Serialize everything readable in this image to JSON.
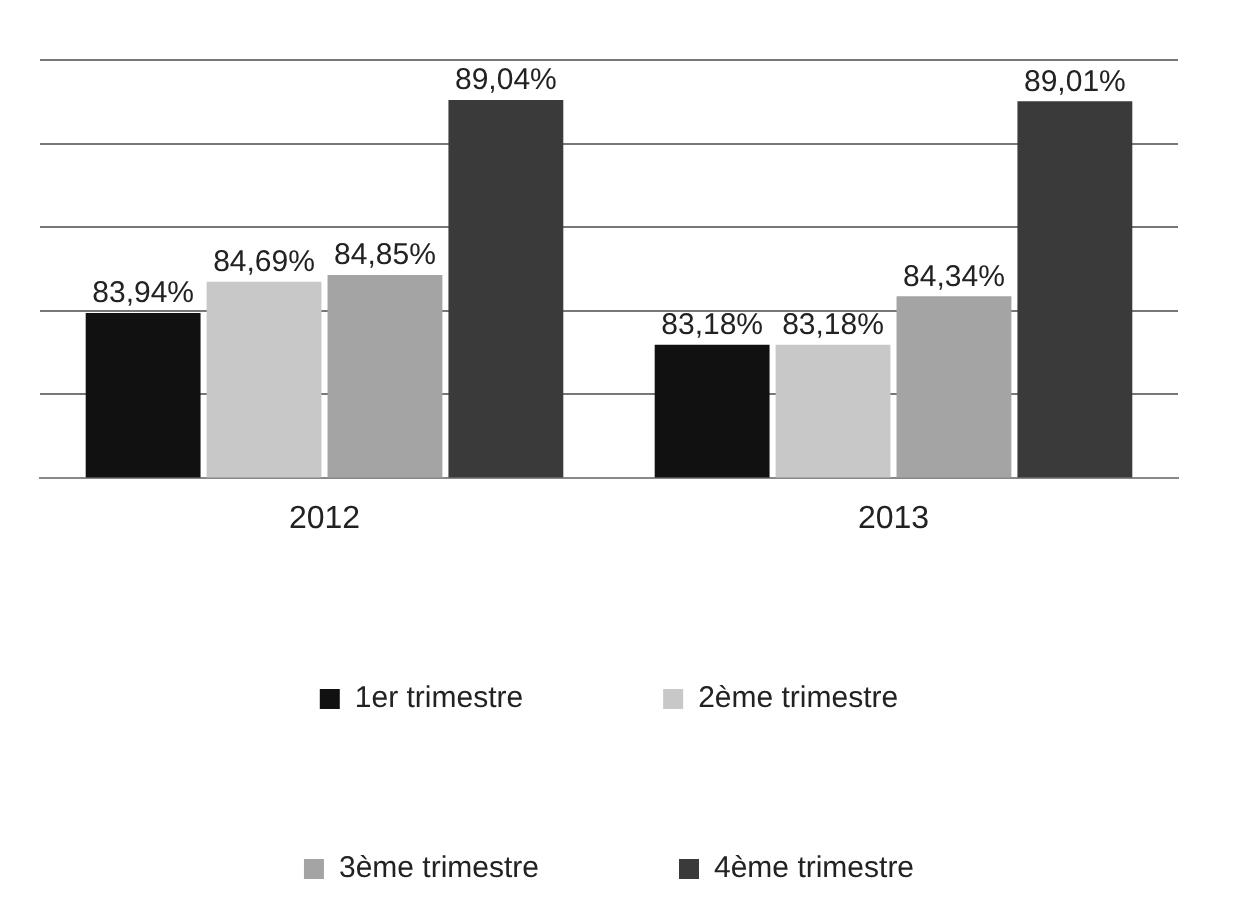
{
  "chart_data": {
    "type": "bar",
    "categories": [
      "2012",
      "2013"
    ],
    "series": [
      {
        "name": "1er trimestre",
        "color": "#111111",
        "values": [
          83.94,
          83.18
        ],
        "value_labels": [
          "83,94%",
          "83,18%"
        ]
      },
      {
        "name": "2ème trimestre",
        "color": "#c8c8c8",
        "values": [
          84.69,
          83.18
        ],
        "value_labels": [
          "84,69%",
          "83,18%"
        ]
      },
      {
        "name": "3ème trimestre",
        "color": "#a4a4a4",
        "values": [
          84.85,
          84.34
        ],
        "value_labels": [
          "84,85%",
          "84,34%"
        ]
      },
      {
        "name": "4ème trimestre",
        "color": "#3a3a3a",
        "values": [
          89.04,
          89.01
        ],
        "value_labels": [
          "89,04%",
          "89,01%"
        ]
      }
    ],
    "ylim": [
      80,
      90
    ],
    "yticks": [
      {
        "value": 80,
        "label": null
      },
      {
        "value": 82,
        "label": null
      },
      {
        "value": 84,
        "label": null
      },
      {
        "value": 86,
        "label": null
      },
      {
        "value": 88,
        "label": null
      },
      {
        "value": 90,
        "label": null
      }
    ],
    "grid": "y",
    "tick_labels": "x",
    "legend": "bottom"
  }
}
